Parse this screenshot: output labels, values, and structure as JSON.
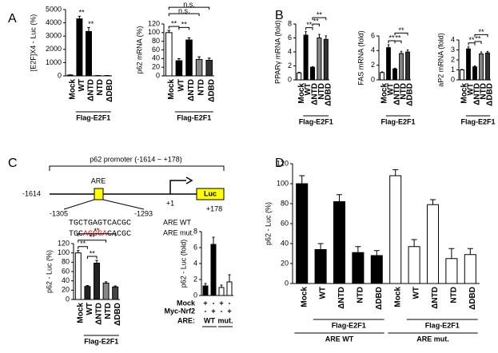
{
  "panel_labels": [
    "A",
    "B",
    "C",
    "D"
  ],
  "diagram": {
    "title": "p62 promoter (-1614 ~ +178)",
    "start": "-1614",
    "element": "ARE",
    "tss": "+1",
    "reporter": "Luc",
    "end": "+178",
    "left_pos": "-1305",
    "right_pos": "-1293",
    "wt_sequence": "TGCTGAGTCACGC",
    "wt_label": "ARE WT",
    "mut_sequence": [
      "TGC",
      "AGGGA",
      "CACGC"
    ],
    "mut_label": "ARE mut."
  },
  "chart_data": [
    {
      "type": "bar",
      "y_label": "[E2F]X4 - Luc (%)",
      "categories": [
        "Mock",
        "WT",
        "ΔNTD",
        "NTD",
        "ΔDBD"
      ],
      "category_colors": [
        "#000000",
        "#e00000",
        "#000000",
        "#e00000",
        "#e00000"
      ],
      "values": [
        60,
        4300,
        3350,
        20,
        20
      ],
      "errors": [
        20,
        200,
        300,
        10,
        10
      ],
      "colors": [
        "#ffffff",
        "#000000",
        "#000000",
        "#888888",
        "#333333"
      ],
      "bar_labels": [
        null,
        "**",
        "**",
        null,
        null
      ],
      "brackets": [],
      "groups": [
        "Flag-E2F1"
      ],
      "ylim": [
        0,
        5000
      ],
      "yticks": [
        0,
        1000,
        2000,
        3000,
        4000,
        5000
      ]
    },
    {
      "type": "bar",
      "y_label": "p62 mRNA (%)",
      "categories": [
        "Mock",
        "WT",
        "ΔNTD",
        "NTD",
        "ΔDBD"
      ],
      "category_colors": [
        "#000000",
        "#e00000",
        "#000000",
        "#e00000",
        "#e00000"
      ],
      "values": [
        100,
        35,
        83,
        38,
        36
      ],
      "errors": [
        5,
        5,
        5,
        6,
        5
      ],
      "colors": [
        "#ffffff",
        "#000000",
        "#000000",
        "#888888",
        "#333333"
      ],
      "brackets": [
        "**",
        "**",
        "n.s.",
        "n.s."
      ],
      "groups": [
        "Flag-E2F1"
      ],
      "ylim": [
        0,
        120
      ],
      "yticks": [
        0,
        20,
        40,
        60,
        80,
        100,
        120
      ]
    },
    {
      "type": "bar",
      "y_label": "PPARγ mRNA (fold)",
      "categories": [
        "Mock",
        "WT",
        "ΔNTD",
        "NTD",
        "ΔDBD"
      ],
      "category_colors": [
        "#000000",
        "#e00000",
        "#000000",
        "#e00000",
        "#e00000"
      ],
      "values": [
        1,
        6.4,
        1.8,
        6.0,
        5.8
      ],
      "errors": [
        0.1,
        0.5,
        0.1,
        0.5,
        0.5
      ],
      "colors": [
        "#ffffff",
        "#000000",
        "#000000",
        "#888888",
        "#333333"
      ],
      "brackets": [
        "**",
        "**",
        "**"
      ],
      "groups": [
        "Flag-E2F1"
      ],
      "ylim": [
        0,
        8
      ],
      "yticks": [
        0,
        2,
        4,
        6,
        8
      ]
    },
    {
      "type": "bar",
      "y_label": "FAS mRNA (fold)",
      "categories": [
        "Mock",
        "WT",
        "ΔNTD",
        "NTD",
        "ΔDBD"
      ],
      "category_colors": [
        "#000000",
        "#e00000",
        "#000000",
        "#e00000",
        "#e00000"
      ],
      "values": [
        1,
        4.4,
        1.5,
        3.6,
        3.8
      ],
      "errors": [
        0.1,
        0.4,
        0.1,
        0.3,
        0.3
      ],
      "colors": [
        "#ffffff",
        "#000000",
        "#000000",
        "#888888",
        "#333333"
      ],
      "brackets": [
        "**",
        "**",
        "**"
      ],
      "groups": [
        "Flag-E2F1"
      ],
      "ylim": [
        0,
        6
      ],
      "yticks": [
        0,
        2,
        4,
        6
      ]
    },
    {
      "type": "bar",
      "y_label": "aP2 mRNA (fold)",
      "categories": [
        "Mock",
        "WT",
        "ΔNTD",
        "NTD",
        "ΔDBD"
      ],
      "category_colors": [
        "#000000",
        "#e00000",
        "#000000",
        "#e00000",
        "#e00000"
      ],
      "values": [
        1,
        3.1,
        1.3,
        2.6,
        2.7
      ],
      "errors": [
        0.05,
        0.2,
        0.1,
        0.2,
        0.15
      ],
      "colors": [
        "#ffffff",
        "#000000",
        "#000000",
        "#888888",
        "#333333"
      ],
      "brackets": [
        "**",
        "**",
        "**"
      ],
      "groups": [
        "Flag-E2F1"
      ],
      "ylim": [
        0,
        4
      ],
      "yticks": [
        0,
        1,
        2,
        3,
        4
      ]
    },
    {
      "type": "bar",
      "y_label": "p62 - Luc (%)",
      "categories": [
        "Mock",
        "WT",
        "ΔNTD",
        "NTD",
        "ΔDBD"
      ],
      "category_colors": [
        "#000000",
        "#e00000",
        "#000000",
        "#e00000",
        "#e00000"
      ],
      "values": [
        100,
        28,
        78,
        35,
        27
      ],
      "errors": [
        5,
        2,
        6,
        3,
        2
      ],
      "colors": [
        "#ffffff",
        "#222222",
        "#222222",
        "#888888",
        "#444444"
      ],
      "brackets": [
        "**",
        "**",
        "**",
        "**"
      ],
      "groups": [
        "Flag-E2F1"
      ],
      "ylim": [
        0,
        120
      ],
      "yticks": [
        0,
        20,
        40,
        60,
        80,
        100,
        120
      ]
    },
    {
      "type": "bar",
      "y_label": "p62 - Luc (fold)",
      "categories": [
        null,
        null,
        null,
        null
      ],
      "values": [
        1.2,
        6.4,
        1.0,
        1.7
      ],
      "errors": [
        0.3,
        0.9,
        0.3,
        0.9
      ],
      "colors": [
        "#000000",
        "#000000",
        "#ffffff",
        "#ffffff"
      ],
      "brackets": [],
      "groups": [],
      "condition_rows": [
        {
          "label": "Mock",
          "marks": [
            "+",
            "-",
            "+",
            "-"
          ]
        },
        {
          "label": "Myc-Nrf2",
          "marks": [
            "-",
            "+",
            "-",
            "+"
          ]
        }
      ],
      "are_row": {
        "label": "ARE:",
        "groups": [
          "WT",
          "mut."
        ]
      },
      "ylim": [
        0,
        8
      ],
      "yticks": [
        0,
        2,
        4,
        6,
        8
      ]
    },
    {
      "type": "bar",
      "y_label": "p62 - Luc (%)",
      "categories": [
        "Mock",
        "WT",
        "ΔNTD",
        "NTD",
        "ΔDBD",
        "Mock",
        "WT",
        "ΔNTD",
        "NTD",
        "ΔDBD"
      ],
      "category_colors": [
        "#000000",
        "#e00000",
        "#000000",
        "#e00000",
        "#e00000",
        "#000000",
        "#e00000",
        "#000000",
        "#e00000",
        "#e00000"
      ],
      "values": [
        100,
        34,
        82,
        31,
        28,
        108,
        37,
        79,
        25,
        29
      ],
      "errors": [
        8,
        6,
        7,
        6,
        5,
        6,
        7,
        5,
        10,
        6
      ],
      "colors": [
        "#000000",
        "#000000",
        "#000000",
        "#000000",
        "#000000",
        "#ffffff",
        "#ffffff",
        "#ffffff",
        "#ffffff",
        "#ffffff"
      ],
      "brackets": [],
      "groups": [
        "Flag-E2F1",
        "Flag-E2F1",
        "ARE WT",
        "ARE mut."
      ],
      "ylim": [
        0,
        120
      ],
      "yticks": [
        0,
        20,
        40,
        60,
        80,
        100,
        120
      ]
    }
  ]
}
